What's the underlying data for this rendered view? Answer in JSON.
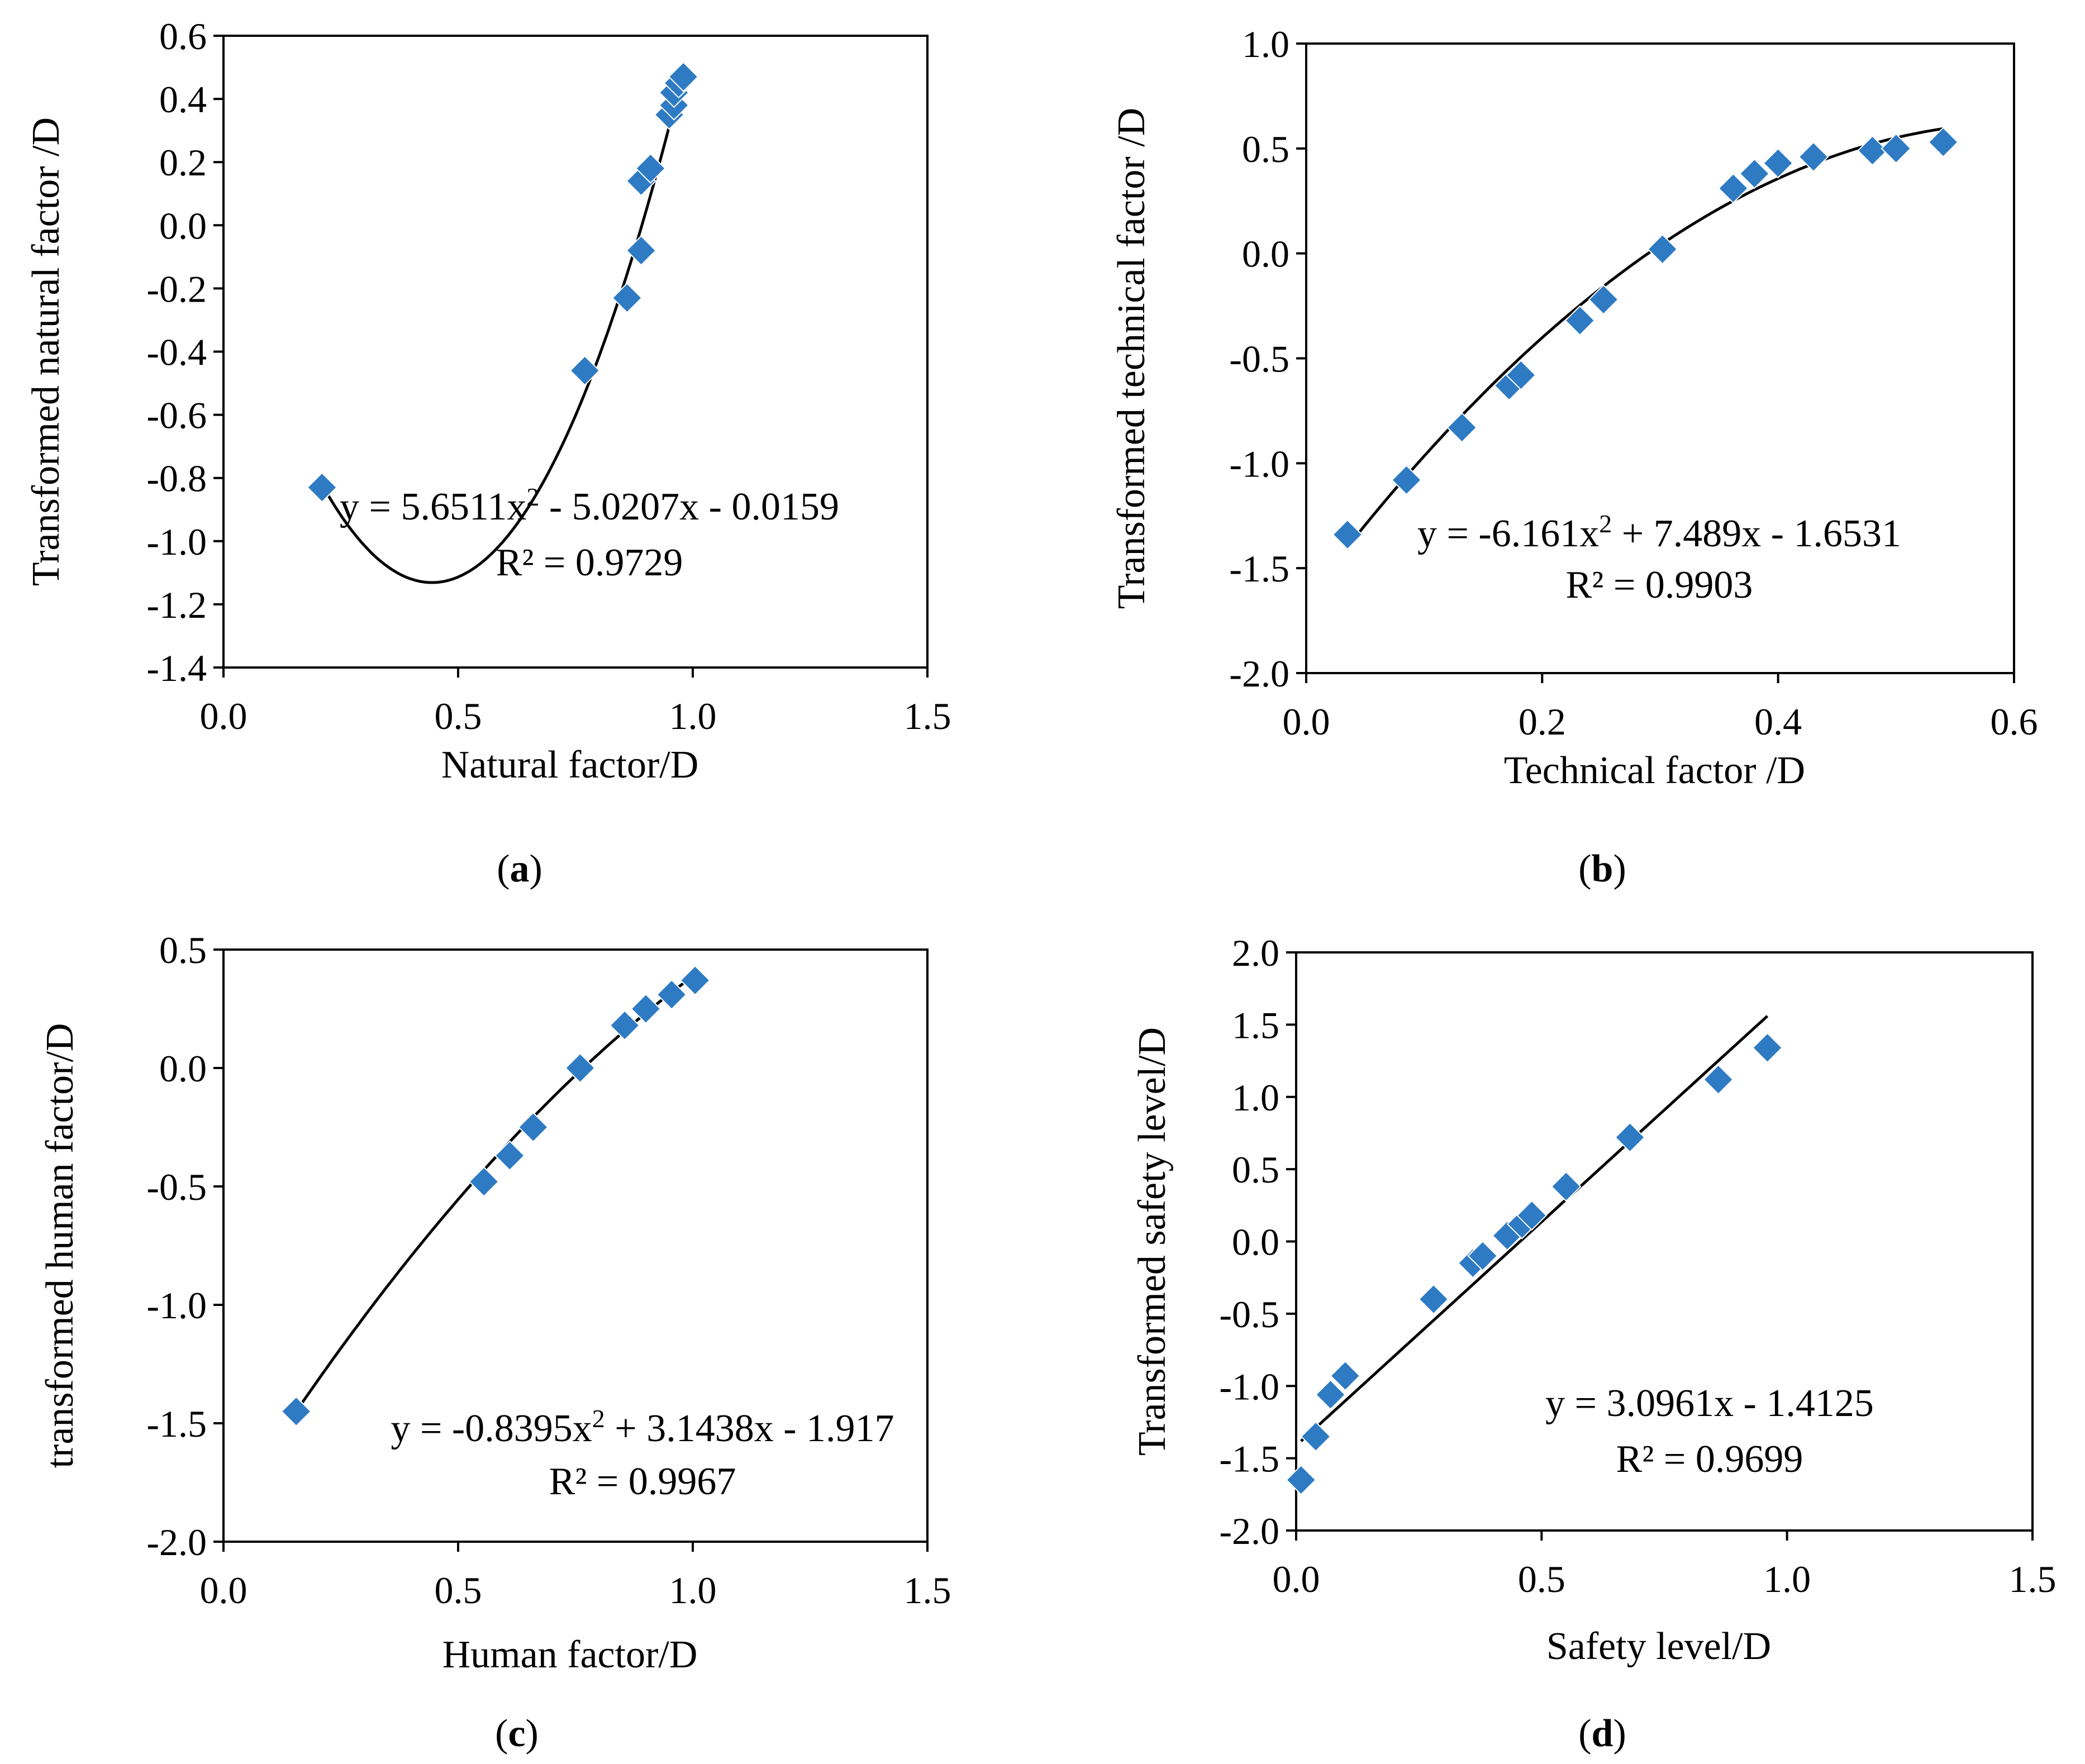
{
  "colors": {
    "marker": "#2e7bc4",
    "fit_line": "#000000",
    "frame": "#000000"
  },
  "chart_data": [
    {
      "type": "scatter",
      "panel_label": "a",
      "xlabel": "Natural factor/D",
      "ylabel": "Transformed natural factor /D",
      "xlim": [
        0,
        1.5
      ],
      "ylim": [
        -1.4,
        0.6
      ],
      "xticks": [
        0,
        0.5,
        1.0,
        1.5
      ],
      "xtick_labels": [
        "0.0",
        "0.5",
        "1.0",
        "1.5"
      ],
      "yticks": [
        -1.4,
        -1.2,
        -1.0,
        -0.8,
        -0.6,
        -0.4,
        -0.2,
        0.0,
        0.2,
        0.4,
        0.6
      ],
      "ytick_labels": [
        "-1.4",
        "-1.2",
        "-1.0",
        "-0.8",
        "-0.6",
        "-0.4",
        "-0.2",
        "0.0",
        "0.2",
        "0.4",
        "0.6"
      ],
      "points": [
        {
          "x": 0.21,
          "y": -0.83
        },
        {
          "x": 0.77,
          "y": -0.46
        },
        {
          "x": 0.86,
          "y": -0.23
        },
        {
          "x": 0.89,
          "y": -0.08
        },
        {
          "x": 0.89,
          "y": 0.14
        },
        {
          "x": 0.91,
          "y": 0.18
        },
        {
          "x": 0.95,
          "y": 0.35
        },
        {
          "x": 0.96,
          "y": 0.38
        },
        {
          "x": 0.96,
          "y": 0.42
        },
        {
          "x": 0.97,
          "y": 0.45
        },
        {
          "x": 0.98,
          "y": 0.47
        }
      ],
      "fit": {
        "kind": "poly2",
        "a": 5.6511,
        "b": -5.0207,
        "c": -0.0159,
        "x_range": [
          0.21,
          0.98
        ]
      },
      "equation": {
        "line1_pre": "y = 5.6511x",
        "line1_sup": "2",
        "line1_post": " - 5.0207x - 0.0159",
        "line2": "R² = 0.9729"
      }
    },
    {
      "type": "scatter",
      "panel_label": "b",
      "xlabel": "Technical factor /D",
      "ylabel": "Transformed technical factor /D",
      "xlim": [
        0,
        0.6
      ],
      "ylim": [
        -2.0,
        1.0
      ],
      "xticks": [
        0,
        0.2,
        0.4,
        0.6
      ],
      "xtick_labels": [
        "0.0",
        "0.2",
        "0.4",
        "0.6"
      ],
      "yticks": [
        -2.0,
        -1.5,
        -1.0,
        -0.5,
        0.0,
        0.5,
        1.0
      ],
      "ytick_labels": [
        "-2.0",
        "-1.5",
        "-1.0",
        "-0.5",
        "0.0",
        "0.5",
        "1.0"
      ],
      "points": [
        {
          "x": 0.035,
          "y": -1.34
        },
        {
          "x": 0.085,
          "y": -1.08
        },
        {
          "x": 0.132,
          "y": -0.83
        },
        {
          "x": 0.172,
          "y": -0.63
        },
        {
          "x": 0.182,
          "y": -0.58
        },
        {
          "x": 0.232,
          "y": -0.32
        },
        {
          "x": 0.252,
          "y": -0.22
        },
        {
          "x": 0.302,
          "y": 0.02
        },
        {
          "x": 0.362,
          "y": 0.31
        },
        {
          "x": 0.38,
          "y": 0.38
        },
        {
          "x": 0.4,
          "y": 0.43
        },
        {
          "x": 0.43,
          "y": 0.46
        },
        {
          "x": 0.48,
          "y": 0.49
        },
        {
          "x": 0.5,
          "y": 0.5
        },
        {
          "x": 0.54,
          "y": 0.53
        }
      ],
      "fit": {
        "kind": "poly2",
        "a": -6.161,
        "b": 7.489,
        "c": -1.6531,
        "x_range": [
          0.035,
          0.54
        ]
      },
      "equation": {
        "line1_pre": "y = -6.161x",
        "line1_sup": "2",
        "line1_post": " + 7.489x - 1.6531",
        "line2": "R² = 0.9903"
      }
    },
    {
      "type": "scatter",
      "panel_label": "c",
      "xlabel": "Human factor/D",
      "ylabel": "transformed human factor/D",
      "xlim": [
        0,
        1.5
      ],
      "ylim": [
        -2.0,
        0.5
      ],
      "xticks": [
        0,
        0.5,
        1.0,
        1.5
      ],
      "xtick_labels": [
        "0.0",
        "0.5",
        "1.0",
        "1.5"
      ],
      "yticks": [
        -2.0,
        -1.5,
        -1.0,
        -0.5,
        0.0,
        0.5
      ],
      "ytick_labels": [
        "-2.0",
        "-1.5",
        "-1.0",
        "-0.5",
        "0.0",
        "0.5"
      ],
      "points": [
        {
          "x": 0.155,
          "y": -1.45
        },
        {
          "x": 0.555,
          "y": -0.48
        },
        {
          "x": 0.61,
          "y": -0.37
        },
        {
          "x": 0.66,
          "y": -0.25
        },
        {
          "x": 0.76,
          "y": 0.0
        },
        {
          "x": 0.855,
          "y": 0.18
        },
        {
          "x": 0.9,
          "y": 0.25
        },
        {
          "x": 0.955,
          "y": 0.31
        },
        {
          "x": 1.005,
          "y": 0.37
        }
      ],
      "fit": {
        "kind": "poly2",
        "a": -0.8395,
        "b": 3.1438,
        "c": -1.917,
        "x_range": [
          0.155,
          1.005
        ]
      },
      "equation": {
        "line1_pre": "y = -0.8395x",
        "line1_sup": "2",
        "line1_post": " + 3.1438x - 1.917",
        "line2": "R² = 0.9967"
      }
    },
    {
      "type": "scatter",
      "panel_label": "d",
      "xlabel": "Safety level/D",
      "ylabel": "Transformed safety level/D",
      "xlim": [
        0,
        1.5
      ],
      "ylim": [
        -2.0,
        2.0
      ],
      "xticks": [
        0,
        0.5,
        1.0,
        1.5
      ],
      "xtick_labels": [
        "0.0",
        "0.5",
        "1.0",
        "1.5"
      ],
      "yticks": [
        -2.0,
        -1.5,
        -1.0,
        -0.5,
        0.0,
        0.5,
        1.0,
        1.5,
        2.0
      ],
      "ytick_labels": [
        "-2.0",
        "-1.5",
        "-1.0",
        "-0.5",
        "0.0",
        "0.5",
        "1.0",
        "1.5",
        "2.0"
      ],
      "points": [
        {
          "x": 0.01,
          "y": -1.65
        },
        {
          "x": 0.04,
          "y": -1.35
        },
        {
          "x": 0.07,
          "y": -1.06
        },
        {
          "x": 0.1,
          "y": -0.93
        },
        {
          "x": 0.28,
          "y": -0.4
        },
        {
          "x": 0.36,
          "y": -0.15
        },
        {
          "x": 0.38,
          "y": -0.1
        },
        {
          "x": 0.43,
          "y": 0.04
        },
        {
          "x": 0.46,
          "y": 0.12
        },
        {
          "x": 0.48,
          "y": 0.18
        },
        {
          "x": 0.55,
          "y": 0.38
        },
        {
          "x": 0.68,
          "y": 0.72
        },
        {
          "x": 0.86,
          "y": 1.12
        },
        {
          "x": 0.96,
          "y": 1.34
        }
      ],
      "fit": {
        "kind": "linear",
        "a": 0,
        "b": 3.0961,
        "c": -1.4125,
        "x_range": [
          0.01,
          0.96
        ]
      },
      "equation": {
        "line1_pre": "y = 3.0961x - 1.4125",
        "line1_sup": "",
        "line1_post": "",
        "line2": "R² = 0.9699"
      }
    }
  ]
}
